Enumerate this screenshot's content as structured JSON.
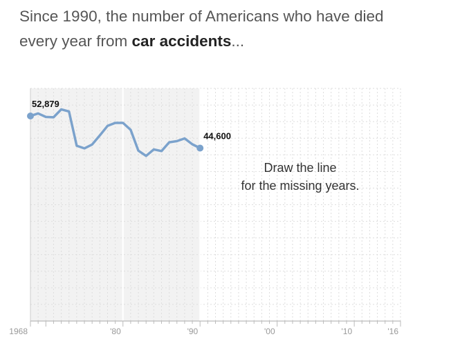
{
  "headline": {
    "line1": "Since 1990, the number of Americans who have died",
    "line2_prefix": "every year from ",
    "line2_bold": "car accidents",
    "line2_suffix": "..."
  },
  "instruction": {
    "line1": "Draw the line",
    "line2": "for the missing years."
  },
  "chart_data": {
    "type": "line",
    "title": "",
    "xlabel": "",
    "ylabel": "",
    "xlim": [
      1968,
      2016
    ],
    "ylim": [
      0,
      60000
    ],
    "x_ticks": [
      {
        "value": 1968,
        "label": "1968"
      },
      {
        "value": 1980,
        "label": "'80"
      },
      {
        "value": 1990,
        "label": "'90"
      },
      {
        "value": 2000,
        "label": "'00"
      },
      {
        "value": 2010,
        "label": "'10"
      },
      {
        "value": 2016,
        "label": "'16"
      }
    ],
    "known_until": 1990,
    "grid": true,
    "series": [
      {
        "x": [
          1968,
          1969,
          1970,
          1971,
          1972,
          1973,
          1974,
          1975,
          1976,
          1977,
          1978,
          1979,
          1980,
          1981,
          1982,
          1983,
          1984,
          1985,
          1986,
          1987,
          1988,
          1989,
          1990
        ],
        "values": [
          52879,
          53543,
          52627,
          52542,
          54589,
          54052,
          45196,
          44525,
          45523,
          47878,
          50331,
          51093,
          51091,
          49301,
          43945,
          42589,
          44257,
          43825,
          46087,
          46390,
          47087,
          45582,
          44600
        ]
      }
    ],
    "data_labels": [
      {
        "x": 1968,
        "label": "52,879"
      },
      {
        "x": 1990,
        "label": "44,600"
      }
    ],
    "colors": {
      "line": "#7ba2cc",
      "known_area": "#f2f2f2",
      "grid": "#dddddd",
      "tick_text": "#999999"
    }
  }
}
